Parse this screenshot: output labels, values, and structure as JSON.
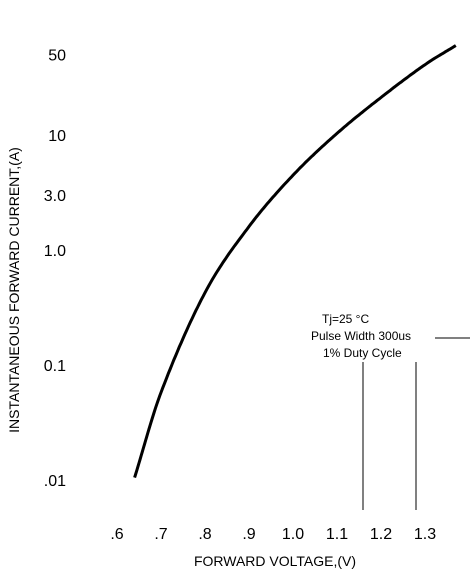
{
  "chart_data": {
    "type": "line",
    "title": "",
    "xlabel": "FORWARD VOLTAGE,(V)",
    "ylabel": "INSTANTANEOUS FORWARD CURRENT,(A)",
    "yscale": "log",
    "grid": false,
    "x_ticks": [
      {
        "value": 0.6,
        "label": ".6"
      },
      {
        "value": 0.7,
        "label": ".7"
      },
      {
        "value": 0.8,
        "label": ".8"
      },
      {
        "value": 0.9,
        "label": ".9"
      },
      {
        "value": 1.0,
        "label": "1.0"
      },
      {
        "value": 1.1,
        "label": "1.1"
      },
      {
        "value": 1.2,
        "label": "1.2"
      },
      {
        "value": 1.3,
        "label": "1.3"
      }
    ],
    "y_ticks": [
      {
        "value": 50,
        "label": "50"
      },
      {
        "value": 10,
        "label": "10"
      },
      {
        "value": 3,
        "label": "3.0"
      },
      {
        "value": 1,
        "label": "1.0"
      },
      {
        "value": 0.1,
        "label": "0.1"
      },
      {
        "value": 0.01,
        "label": ".01"
      }
    ],
    "series": [
      {
        "x": [
          0.64,
          0.7,
          0.8,
          0.9,
          1.0,
          1.1,
          1.2,
          1.3,
          1.37
        ],
        "y": [
          0.0105,
          0.0577,
          0.4255,
          1.6,
          4.47,
          10.33,
          21.2,
          40.9,
          60.0
        ]
      }
    ],
    "annotation": {
      "lines": [
        "Tj=25 °C",
        "Pulse Width 300us",
        "1% Duty Cycle"
      ]
    }
  },
  "colors": {
    "background": "#ffffff",
    "curve": "#000000",
    "text": "#000000"
  }
}
